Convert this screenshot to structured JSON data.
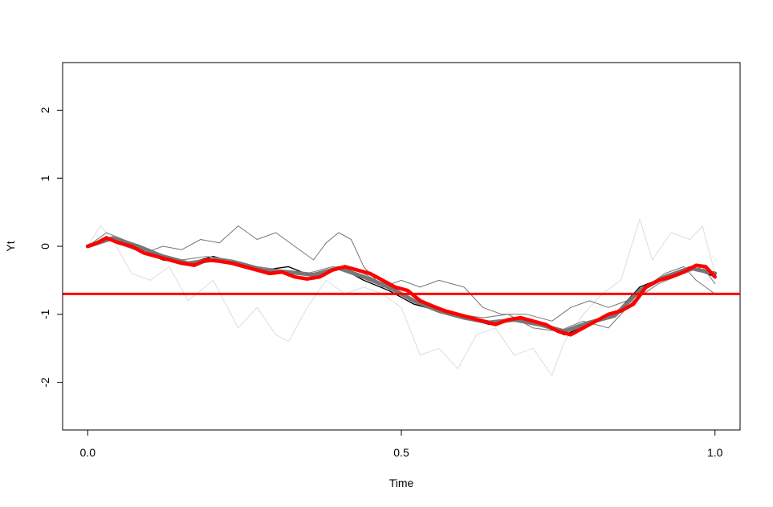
{
  "chart_data": {
    "type": "line",
    "title": "",
    "xlabel": "Time",
    "ylabel": "Yt",
    "xlim": [
      -0.04,
      1.04
    ],
    "ylim": [
      -2.7,
      2.7
    ],
    "x_ticks": [
      0.0,
      0.5,
      1.0
    ],
    "x_tick_labels": [
      "0.0",
      "0.5",
      "1.0"
    ],
    "y_ticks": [
      -2,
      -1,
      0,
      1,
      2
    ],
    "y_tick_labels": [
      "-2",
      "-1",
      "0",
      "1",
      "2"
    ],
    "grid": false,
    "legend": "none",
    "hline": {
      "y": -0.7,
      "color": "#ff0000"
    },
    "series": [
      {
        "color": "#dddddd",
        "line_width": 1,
        "x": [
          0.0,
          0.02,
          0.04,
          0.07,
          0.1,
          0.13,
          0.16,
          0.2,
          0.24,
          0.27,
          0.3,
          0.32,
          0.35,
          0.38,
          0.41,
          0.44,
          0.47,
          0.5,
          0.53,
          0.56,
          0.59,
          0.62,
          0.65,
          0.68,
          0.71,
          0.74,
          0.76,
          0.79,
          0.82,
          0.85,
          0.88,
          0.9,
          0.93,
          0.96,
          0.98,
          1.0
        ],
        "y": [
          0.0,
          0.3,
          0.1,
          -0.4,
          -0.5,
          -0.3,
          -0.8,
          -0.5,
          -1.2,
          -0.9,
          -1.3,
          -1.4,
          -0.9,
          -0.5,
          -0.7,
          -0.6,
          -0.7,
          -0.9,
          -1.6,
          -1.5,
          -1.8,
          -1.3,
          -1.2,
          -1.6,
          -1.5,
          -1.9,
          -1.4,
          -1.0,
          -0.7,
          -0.5,
          0.4,
          -0.2,
          0.2,
          0.1,
          0.3,
          -0.4
        ]
      },
      {
        "color": "#777777",
        "line_width": 1,
        "x": [
          0.0,
          0.03,
          0.06,
          0.09,
          0.12,
          0.15,
          0.18,
          0.21,
          0.24,
          0.27,
          0.3,
          0.33,
          0.36,
          0.38,
          0.4,
          0.42,
          0.44,
          0.47,
          0.5,
          0.53,
          0.56,
          0.6,
          0.63,
          0.66,
          0.7,
          0.74,
          0.77,
          0.8,
          0.83,
          0.86,
          0.89,
          0.92,
          0.95,
          0.97,
          1.0
        ],
        "y": [
          0.0,
          0.15,
          0.0,
          -0.1,
          0.0,
          -0.05,
          0.1,
          0.05,
          0.3,
          0.1,
          0.2,
          0.0,
          -0.2,
          0.05,
          0.2,
          0.1,
          -0.3,
          -0.6,
          -0.5,
          -0.6,
          -0.5,
          -0.6,
          -0.9,
          -1.0,
          -1.0,
          -1.1,
          -0.9,
          -0.8,
          -0.9,
          -0.8,
          -0.6,
          -0.4,
          -0.3,
          -0.5,
          -0.7
        ]
      },
      {
        "color": "#000000",
        "line_width": 1.4,
        "x": [
          0.0,
          0.04,
          0.08,
          0.12,
          0.16,
          0.2,
          0.24,
          0.28,
          0.32,
          0.36,
          0.4,
          0.44,
          0.48,
          0.52,
          0.56,
          0.6,
          0.64,
          0.68,
          0.72,
          0.76,
          0.8,
          0.84,
          0.88,
          0.92,
          0.96,
          1.0
        ],
        "y": [
          0.0,
          0.1,
          -0.05,
          -0.2,
          -0.25,
          -0.15,
          -0.25,
          -0.35,
          -0.3,
          -0.45,
          -0.3,
          -0.5,
          -0.65,
          -0.85,
          -0.95,
          -1.05,
          -1.15,
          -1.05,
          -1.15,
          -1.3,
          -1.15,
          -1.0,
          -0.6,
          -0.45,
          -0.3,
          -0.45
        ]
      },
      {
        "color": "#888888",
        "line_width": 1.2,
        "x": [
          0.0,
          0.03,
          0.07,
          0.11,
          0.15,
          0.19,
          0.23,
          0.27,
          0.31,
          0.35,
          0.39,
          0.43,
          0.47,
          0.51,
          0.55,
          0.59,
          0.63,
          0.67,
          0.71,
          0.75,
          0.79,
          0.83,
          0.87,
          0.91,
          0.95,
          0.98,
          1.0
        ],
        "y": [
          0.0,
          0.2,
          0.05,
          -0.1,
          -0.2,
          -0.15,
          -0.2,
          -0.3,
          -0.35,
          -0.4,
          -0.3,
          -0.35,
          -0.55,
          -0.65,
          -0.9,
          -1.0,
          -1.05,
          -1.0,
          -1.2,
          -1.25,
          -1.1,
          -1.2,
          -0.8,
          -0.55,
          -0.4,
          -0.3,
          -0.55
        ]
      },
      {
        "color": "#777777",
        "line_width": 5,
        "x": [
          0.0,
          0.04,
          0.08,
          0.12,
          0.16,
          0.2,
          0.24,
          0.28,
          0.32,
          0.36,
          0.4,
          0.44,
          0.48,
          0.52,
          0.56,
          0.6,
          0.64,
          0.68,
          0.72,
          0.76,
          0.8,
          0.84,
          0.88,
          0.92,
          0.96,
          1.0
        ],
        "y": [
          0.0,
          0.12,
          0.0,
          -0.15,
          -0.25,
          -0.2,
          -0.25,
          -0.35,
          -0.38,
          -0.42,
          -0.32,
          -0.45,
          -0.6,
          -0.8,
          -0.95,
          -1.05,
          -1.12,
          -1.08,
          -1.15,
          -1.25,
          -1.12,
          -1.02,
          -0.65,
          -0.45,
          -0.32,
          -0.4
        ]
      },
      {
        "color": "#ff0000",
        "line_width": 4.5,
        "x": [
          0.0,
          0.015,
          0.03,
          0.05,
          0.07,
          0.09,
          0.11,
          0.13,
          0.15,
          0.17,
          0.19,
          0.21,
          0.23,
          0.25,
          0.27,
          0.29,
          0.31,
          0.33,
          0.35,
          0.37,
          0.39,
          0.41,
          0.43,
          0.45,
          0.47,
          0.49,
          0.51,
          0.53,
          0.55,
          0.57,
          0.59,
          0.61,
          0.63,
          0.65,
          0.67,
          0.69,
          0.71,
          0.73,
          0.75,
          0.77,
          0.79,
          0.81,
          0.83,
          0.85,
          0.87,
          0.89,
          0.91,
          0.93,
          0.95,
          0.97,
          0.985,
          1.0
        ],
        "y": [
          0.0,
          0.05,
          0.12,
          0.05,
          0.0,
          -0.1,
          -0.15,
          -0.2,
          -0.25,
          -0.28,
          -0.2,
          -0.22,
          -0.25,
          -0.3,
          -0.35,
          -0.4,
          -0.38,
          -0.45,
          -0.48,
          -0.45,
          -0.35,
          -0.3,
          -0.35,
          -0.4,
          -0.5,
          -0.6,
          -0.65,
          -0.8,
          -0.88,
          -0.95,
          -1.0,
          -1.05,
          -1.1,
          -1.15,
          -1.08,
          -1.05,
          -1.1,
          -1.15,
          -1.25,
          -1.3,
          -1.2,
          -1.1,
          -1.0,
          -0.95,
          -0.85,
          -0.6,
          -0.5,
          -0.45,
          -0.38,
          -0.28,
          -0.3,
          -0.45
        ]
      }
    ]
  }
}
